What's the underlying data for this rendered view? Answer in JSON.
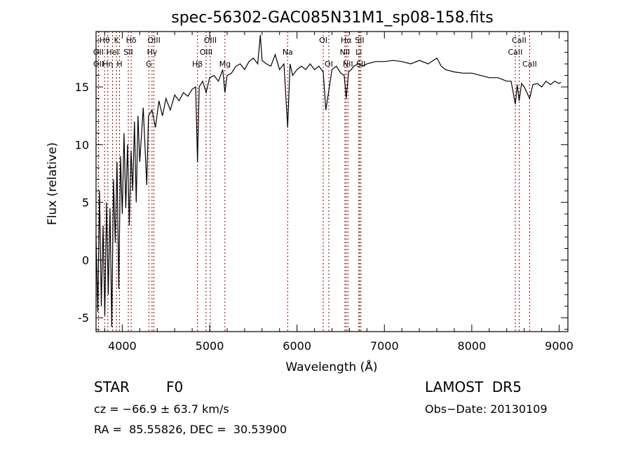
{
  "chart_data": {
    "type": "line",
    "title": "spec-56302-GAC085N31M1_sp08-158.fits",
    "xlabel": "Wavelength (Å)",
    "ylabel": "Flux (relative)",
    "xlim": [
      3700,
      9100
    ],
    "ylim": [
      -6.2,
      19.8
    ],
    "xticks": [
      4000,
      5000,
      6000,
      7000,
      8000,
      9000
    ],
    "yticks": [
      -5,
      0,
      5,
      10,
      15
    ],
    "grid": false,
    "line_color": "#000000",
    "marker_color": "#8b0000",
    "series": [
      {
        "x": [
          3700,
          3720,
          3740,
          3760,
          3780,
          3800,
          3820,
          3840,
          3860,
          3880,
          3900,
          3920,
          3940,
          3960,
          3980,
          4000,
          4020,
          4040,
          4060,
          4080,
          4100,
          4120,
          4140,
          4160,
          4180,
          4200,
          4240,
          4280,
          4300,
          4340,
          4380,
          4420,
          4460,
          4500,
          4550,
          4600,
          4650,
          4700,
          4750,
          4800,
          4840,
          4861,
          4880,
          4920,
          4960,
          5000,
          5050,
          5100,
          5150,
          5175,
          5200,
          5250,
          5300,
          5350,
          5400,
          5450,
          5500,
          5550,
          5580,
          5600,
          5650,
          5700,
          5750,
          5800,
          5850,
          5893,
          5920,
          5950,
          6000,
          6050,
          6100,
          6150,
          6200,
          6250,
          6300,
          6330,
          6400,
          6450,
          6500,
          6540,
          6563,
          6590,
          6620,
          6650,
          6700,
          6750,
          6800,
          6900,
          7000,
          7100,
          7200,
          7300,
          7400,
          7500,
          7600,
          7650,
          7700,
          7800,
          7900,
          8000,
          8100,
          8200,
          8300,
          8400,
          8450,
          8498,
          8520,
          8542,
          8570,
          8600,
          8662,
          8700,
          8750,
          8800,
          8850,
          8900,
          8950,
          9000,
          9020
        ],
        "y": [
          2,
          -4.5,
          6,
          -4,
          3,
          -4.8,
          5,
          -3,
          4.5,
          -5.8,
          7,
          1.5,
          8.5,
          -2.5,
          9,
          4,
          11,
          4.5,
          10,
          3,
          9.5,
          6,
          12,
          5,
          12.5,
          8.5,
          13.2,
          6.5,
          12.5,
          13,
          11.5,
          13.8,
          12.5,
          14,
          13,
          14.3,
          13.8,
          14.5,
          14.2,
          14.8,
          15,
          8.5,
          15,
          15.5,
          14.5,
          15.8,
          16,
          15.5,
          16.5,
          14.5,
          16,
          16.2,
          16.8,
          17,
          16.5,
          17.2,
          17.5,
          17,
          19.5,
          17.3,
          17,
          16.8,
          17.8,
          16.5,
          17,
          11.5,
          17,
          16,
          16.5,
          16.8,
          16.5,
          17,
          16.5,
          16.8,
          16.3,
          13,
          16.5,
          16.8,
          16.2,
          16,
          14,
          16.3,
          16.5,
          16.8,
          17,
          16.8,
          17,
          17.2,
          17.2,
          17.3,
          17.2,
          17,
          17.3,
          17,
          17.5,
          16.8,
          16.5,
          16.3,
          16.2,
          16.2,
          16,
          15.8,
          15.8,
          15.5,
          15.5,
          13.5,
          15.2,
          13.8,
          15.3,
          15,
          14,
          15.2,
          15.3,
          15,
          15.5,
          15.2,
          15.5,
          15.3,
          15.4
        ]
      }
    ],
    "lines": [
      {
        "label": "Hθ",
        "x": 3798,
        "row": 0
      },
      {
        "label": "OII",
        "x": 3727,
        "row": 1
      },
      {
        "label": "OII",
        "x": 3729,
        "row": 2
      },
      {
        "label": "Hη",
        "x": 3835,
        "row": 2
      },
      {
        "label": "HeI",
        "x": 3889,
        "row": 1
      },
      {
        "label": "K",
        "x": 3934,
        "row": 0
      },
      {
        "label": "H",
        "x": 3969,
        "row": 2
      },
      {
        "label": "SII",
        "x": 4069,
        "row": 1
      },
      {
        "label": "Hδ",
        "x": 4102,
        "row": 0
      },
      {
        "label": "G",
        "x": 4304,
        "row": 2
      },
      {
        "label": "Hγ",
        "x": 4341,
        "row": 1
      },
      {
        "label": "OIII",
        "x": 4363,
        "row": 0
      },
      {
        "label": "Hβ",
        "x": 4861,
        "row": 2
      },
      {
        "label": "OIII",
        "x": 4959,
        "row": 1
      },
      {
        "label": "OIII",
        "x": 5007,
        "row": 0
      },
      {
        "label": "Mg",
        "x": 5175,
        "row": 2
      },
      {
        "label": "Na",
        "x": 5893,
        "row": 1
      },
      {
        "label": "OI",
        "x": 6300,
        "row": 0
      },
      {
        "label": "OI",
        "x": 6364,
        "row": 2
      },
      {
        "label": "NII",
        "x": 6548,
        "row": 1
      },
      {
        "label": "Hα",
        "x": 6563,
        "row": 0
      },
      {
        "label": "NII",
        "x": 6583,
        "row": 2
      },
      {
        "label": "Li",
        "x": 6707,
        "row": 1
      },
      {
        "label": "SII",
        "x": 6716,
        "row": 0
      },
      {
        "label": "SII",
        "x": 6731,
        "row": 2
      },
      {
        "label": "CaII",
        "x": 8498,
        "row": 1
      },
      {
        "label": "CaII",
        "x": 8542,
        "row": 0
      },
      {
        "label": "CaII",
        "x": 8662,
        "row": 2
      }
    ]
  },
  "info": {
    "class_label": "STAR",
    "subclass": "F0",
    "survey": "LAMOST  DR5",
    "cz": "cz = −66.9 ± 63.7 km/s",
    "obs_date": "Obs−Date: 20130109",
    "radec": "RA =  85.55826, DEC =  30.53900"
  }
}
